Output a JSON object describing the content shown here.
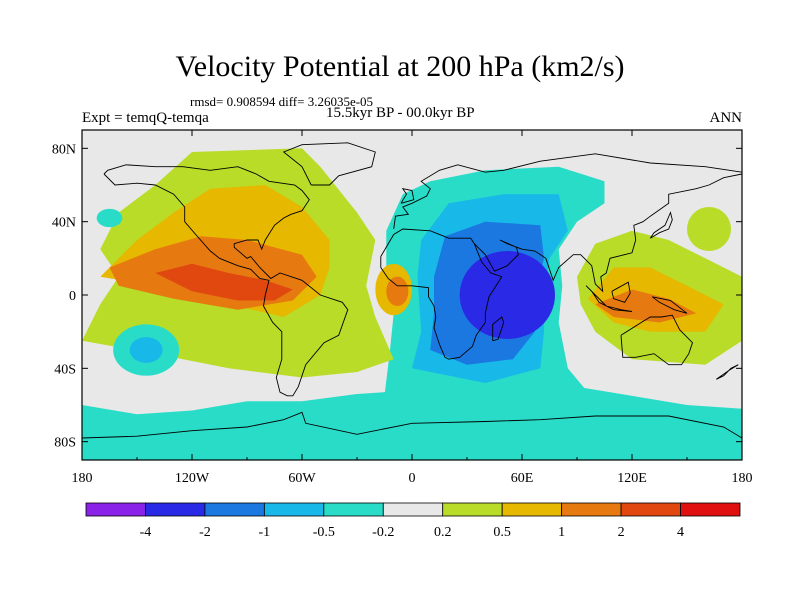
{
  "title": "Velocity Potential at 200 hPa (km2/s)",
  "stats_line": "rmsd= 0.908594 diff= 3.26035e-05",
  "left_label": "Expt = temqQ-temqa",
  "center_label": "15.5kyr BP - 00.0kyr BP",
  "right_label": "ANN",
  "chart_data": {
    "type": "heatmap",
    "title": "Velocity Potential at 200 hPa (km2/s)",
    "xlabel": "",
    "ylabel": "",
    "x_ticks": [
      "180",
      "120W",
      "60W",
      "0",
      "60E",
      "120E",
      "180"
    ],
    "x_tick_values": [
      -180,
      -120,
      -60,
      0,
      60,
      120,
      180
    ],
    "y_ticks": [
      "80N",
      "40N",
      "0",
      "40S",
      "80S"
    ],
    "y_tick_values": [
      80,
      40,
      0,
      -40,
      -80
    ],
    "xlim": [
      -180,
      180
    ],
    "ylim": [
      -90,
      90
    ],
    "colorbar": {
      "labels": [
        "-4",
        "-2",
        "-1",
        "-0.5",
        "-0.2",
        "0.2",
        "0.5",
        "1",
        "2",
        "4"
      ],
      "colors": [
        "#8b22e8",
        "#2a2ae6",
        "#1a78e0",
        "#18b8e8",
        "#28dcc8",
        "#e8e8e8",
        "#b8dc28",
        "#e6b800",
        "#e67a10",
        "#e04810",
        "#e01010"
      ]
    },
    "regions": [
      {
        "lon": -150,
        "lat": 8,
        "value": 2
      },
      {
        "lon": -100,
        "lat": 15,
        "value": 2
      },
      {
        "lon": -80,
        "lat": 0,
        "value": 4
      },
      {
        "lon": -10,
        "lat": 0,
        "value": 2
      },
      {
        "lon": 55,
        "lat": 0,
        "value": -4
      },
      {
        "lon": 60,
        "lat": 35,
        "value": -1
      },
      {
        "lon": 120,
        "lat": -5,
        "value": 2
      },
      {
        "lon": 160,
        "lat": 35,
        "value": 0.5
      },
      {
        "lon": -165,
        "lat": 40,
        "value": -0.5
      },
      {
        "lon": -150,
        "lat": -30,
        "value": -0.5
      }
    ]
  }
}
